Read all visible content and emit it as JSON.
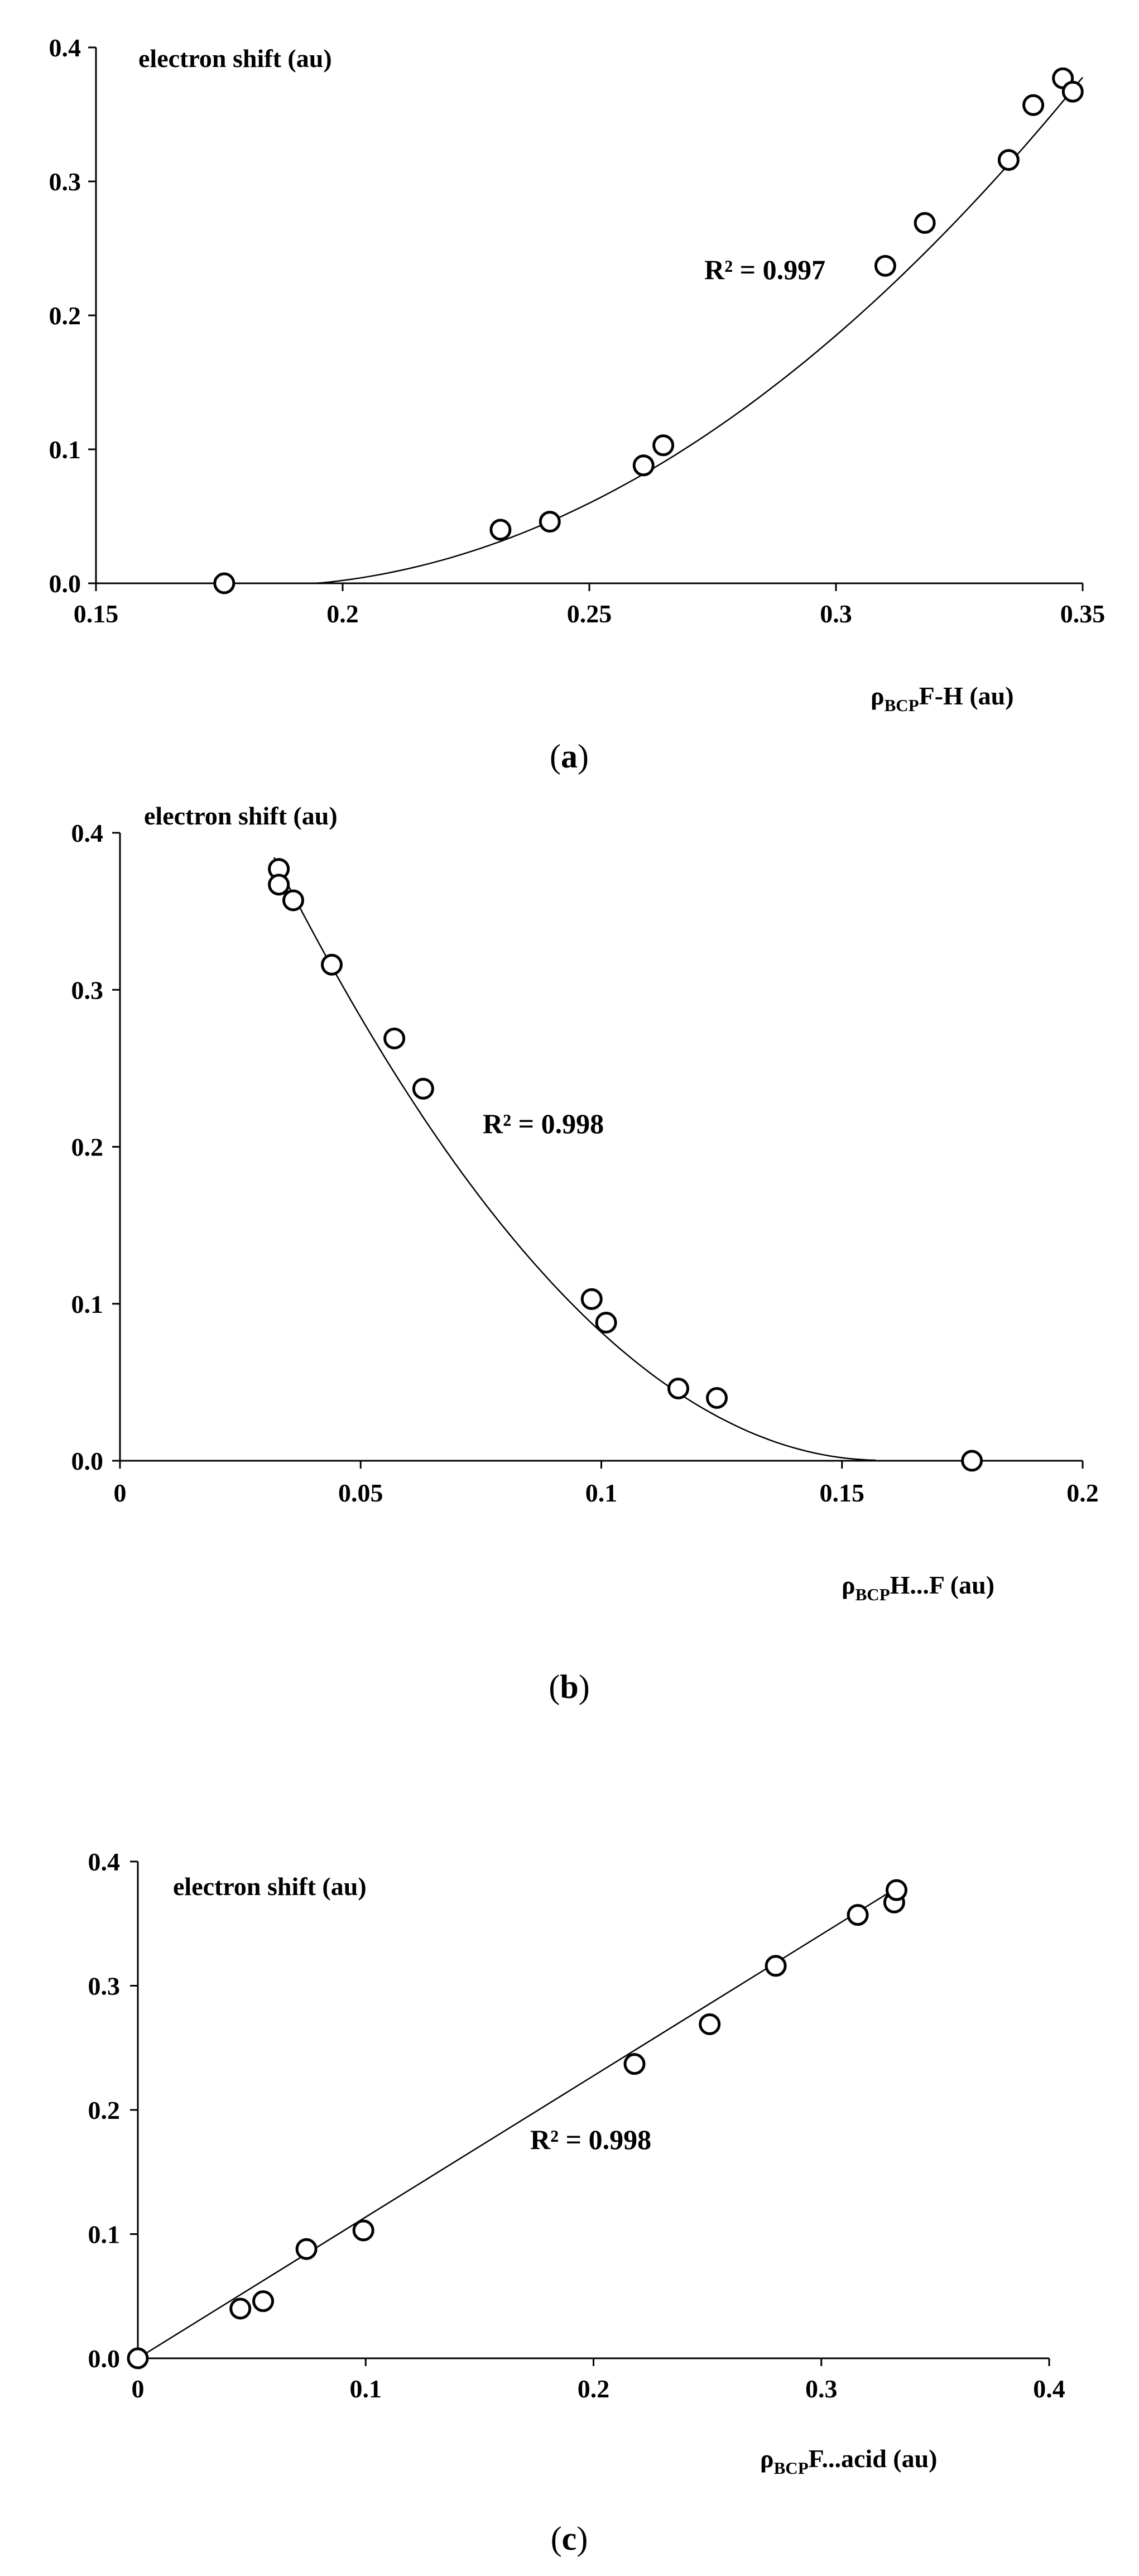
{
  "chart_data": [
    {
      "panel": "a",
      "type": "scatter",
      "ylabel": "electron shift (au)",
      "xlabel": {
        "rho": "ρ",
        "sub": "BCP",
        "rest": "F-H (au)"
      },
      "xlim": [
        0.15,
        0.35
      ],
      "ylim": [
        0,
        0.4
      ],
      "xticks": [
        0.15,
        0.2,
        0.25,
        0.3,
        0.35
      ],
      "yticks": [
        0.0,
        0.1,
        0.2,
        0.3,
        0.4
      ],
      "xtick_labels": [
        "0.15",
        "0.2",
        "0.25",
        "0.3",
        "0.35"
      ],
      "ytick_labels": [
        "0.0",
        "0.1",
        "0.2",
        "0.3",
        "0.4"
      ],
      "r2_text": "R² = 0.997",
      "caption": {
        "open": "(",
        "letter": "a",
        "close": ")"
      },
      "trendline": "polynomial",
      "x": [
        0.176,
        0.232,
        0.242,
        0.261,
        0.265,
        0.31,
        0.318,
        0.335,
        0.34,
        0.346,
        0.348
      ],
      "y": [
        0.0,
        0.04,
        0.046,
        0.088,
        0.103,
        0.237,
        0.269,
        0.316,
        0.357,
        0.377,
        0.367
      ],
      "fit": [
        [
          0.19,
          0.0
        ],
        [
          0.22,
          0.017
        ],
        [
          0.25,
          0.057
        ],
        [
          0.28,
          0.125
        ],
        [
          0.31,
          0.221
        ],
        [
          0.34,
          0.344
        ],
        [
          0.35,
          0.368
        ]
      ]
    },
    {
      "panel": "b",
      "type": "scatter",
      "ylabel": "electron shift (au)",
      "xlabel": {
        "rho": "ρ",
        "sub": "BCP",
        "rest": "H...F (au)"
      },
      "xlim": [
        0,
        0.2
      ],
      "ylim": [
        0,
        0.4
      ],
      "xticks": [
        0,
        0.05,
        0.1,
        0.15,
        0.2
      ],
      "yticks": [
        0.0,
        0.1,
        0.2,
        0.3,
        0.4
      ],
      "xtick_labels": [
        "0",
        "0.05",
        "0.1",
        "0.15",
        "0.2"
      ],
      "ytick_labels": [
        "0.0",
        "0.1",
        "0.2",
        "0.3",
        "0.4"
      ],
      "r2_text": "R² = 0.998",
      "caption": {
        "open": "(",
        "letter": "b",
        "close": ")"
      },
      "trendline": "polynomial",
      "x": [
        0.033,
        0.033,
        0.036,
        0.044,
        0.057,
        0.063,
        0.098,
        0.101,
        0.116,
        0.124,
        0.177
      ],
      "y": [
        0.377,
        0.367,
        0.357,
        0.316,
        0.269,
        0.237,
        0.103,
        0.088,
        0.046,
        0.04,
        0.0
      ],
      "fit": [
        [
          0.032,
          0.385
        ],
        [
          0.05,
          0.282
        ],
        [
          0.075,
          0.166
        ],
        [
          0.1,
          0.083
        ],
        [
          0.125,
          0.027
        ],
        [
          0.15,
          0.002
        ],
        [
          0.157,
          0.0
        ]
      ]
    },
    {
      "panel": "c",
      "type": "scatter",
      "ylabel": "electron shift (au)",
      "xlabel": {
        "rho": "ρ",
        "sub": "BCP",
        "rest": "F...acid (au)"
      },
      "xlim": [
        0,
        0.4
      ],
      "ylim": [
        0,
        0.4
      ],
      "xticks": [
        0,
        0.1,
        0.2,
        0.3,
        0.4
      ],
      "yticks": [
        0.0,
        0.1,
        0.2,
        0.3,
        0.4
      ],
      "xtick_labels": [
        "0",
        "0.1",
        "0.2",
        "0.3",
        "0.4"
      ],
      "ytick_labels": [
        "0.0",
        "0.1",
        "0.2",
        "0.3",
        "0.4"
      ],
      "r2_text": "R² = 0.998",
      "caption": {
        "open": "(",
        "letter": "c",
        "close": ")"
      },
      "trendline": "linear",
      "x": [
        0.0,
        0.045,
        0.055,
        0.074,
        0.099,
        0.218,
        0.251,
        0.28,
        0.316,
        0.332,
        0.333
      ],
      "y": [
        0.0,
        0.04,
        0.046,
        0.088,
        0.103,
        0.237,
        0.269,
        0.316,
        0.357,
        0.367,
        0.377
      ],
      "fit": [
        [
          0.0,
          0.0
        ],
        [
          0.335,
          0.381
        ]
      ]
    }
  ]
}
